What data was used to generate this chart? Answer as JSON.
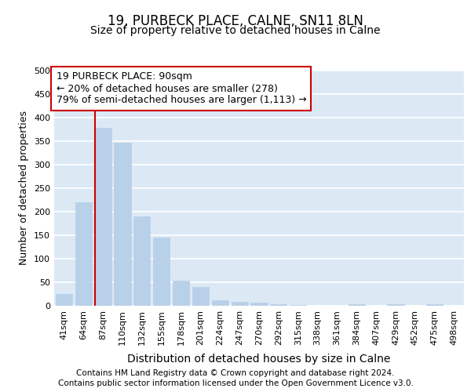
{
  "title": "19, PURBECK PLACE, CALNE, SN11 8LN",
  "subtitle": "Size of property relative to detached houses in Calne",
  "xlabel": "Distribution of detached houses by size in Calne",
  "ylabel": "Number of detached properties",
  "categories": [
    "41sqm",
    "64sqm",
    "87sqm",
    "110sqm",
    "132sqm",
    "155sqm",
    "178sqm",
    "201sqm",
    "224sqm",
    "247sqm",
    "270sqm",
    "292sqm",
    "315sqm",
    "338sqm",
    "361sqm",
    "384sqm",
    "407sqm",
    "429sqm",
    "452sqm",
    "475sqm",
    "498sqm"
  ],
  "values": [
    25,
    220,
    378,
    347,
    190,
    145,
    54,
    40,
    12,
    8,
    7,
    4,
    1,
    0,
    0,
    3,
    0,
    3,
    0,
    3,
    0
  ],
  "bar_color": "#b8d0e8",
  "bar_edgecolor": "#b8d0e8",
  "redline_x": 2,
  "ylim": [
    0,
    500
  ],
  "yticks": [
    0,
    50,
    100,
    150,
    200,
    250,
    300,
    350,
    400,
    450,
    500
  ],
  "annotation_title": "19 PURBECK PLACE: 90sqm",
  "annotation_line1": "← 20% of detached houses are smaller (278)",
  "annotation_line2": "79% of semi-detached houses are larger (1,113) →",
  "annotation_box_facecolor": "#ffffff",
  "annotation_box_edgecolor": "#cc0000",
  "footnote1": "Contains HM Land Registry data © Crown copyright and database right 2024.",
  "footnote2": "Contains public sector information licensed under the Open Government Licence v3.0.",
  "background_color": "#dce9f5",
  "grid_color": "#ffffff",
  "title_fontsize": 12,
  "subtitle_fontsize": 10,
  "tick_fontsize": 8,
  "ylabel_fontsize": 9,
  "xlabel_fontsize": 10,
  "annotation_fontsize": 9,
  "footnote_fontsize": 7.5
}
